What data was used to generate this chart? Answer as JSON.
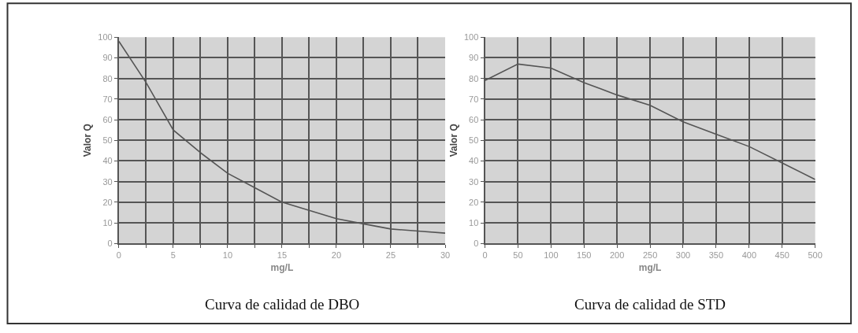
{
  "chart_data": [
    {
      "type": "line",
      "title": "Curva de calidad de DBO",
      "xlabel": "mg/L",
      "ylabel": "Valor Q",
      "x": [
        0,
        2.5,
        5,
        7.5,
        10,
        12.5,
        15,
        17.5,
        20,
        22.5,
        25,
        27.5,
        30
      ],
      "series": [
        {
          "color": "#555555",
          "values": [
            98,
            78,
            55,
            44,
            34,
            27,
            20,
            16,
            12,
            9.5,
            7,
            6,
            5
          ]
        }
      ],
      "xlim": [
        0,
        30
      ],
      "xticks": [
        0,
        {
          "value": 2.5,
          "label": null
        },
        5,
        {
          "value": 7.5,
          "label": null
        },
        10,
        {
          "value": 12.5,
          "label": null
        },
        15,
        {
          "value": 17.5,
          "label": null
        },
        20,
        {
          "value": 22.5,
          "label": null
        },
        25,
        {
          "value": 27.5,
          "label": null
        },
        30
      ],
      "ylim": [
        0,
        100
      ],
      "yticks": [
        0,
        10,
        20,
        30,
        40,
        50,
        60,
        70,
        80,
        90,
        100
      ],
      "grid": true,
      "marker": "none",
      "line_style": "solid"
    },
    {
      "type": "line",
      "title": "Curva de calidad de STD",
      "xlabel": "mg/L",
      "ylabel": "Valor Q",
      "x": [
        0,
        50,
        100,
        150,
        200,
        250,
        300,
        350,
        400,
        450,
        500
      ],
      "series": [
        {
          "color": "#555555",
          "values": [
            79,
            87,
            85,
            78,
            72,
            67,
            59,
            53,
            47,
            39,
            31
          ]
        }
      ],
      "xlim": [
        0,
        500
      ],
      "xticks": [
        0,
        50,
        100,
        150,
        200,
        250,
        300,
        350,
        400,
        450,
        500
      ],
      "ylim": [
        0,
        100
      ],
      "yticks": [
        0,
        10,
        20,
        30,
        40,
        50,
        60,
        70,
        80,
        90,
        100
      ],
      "grid": true,
      "marker": "none",
      "line_style": "solid"
    }
  ]
}
